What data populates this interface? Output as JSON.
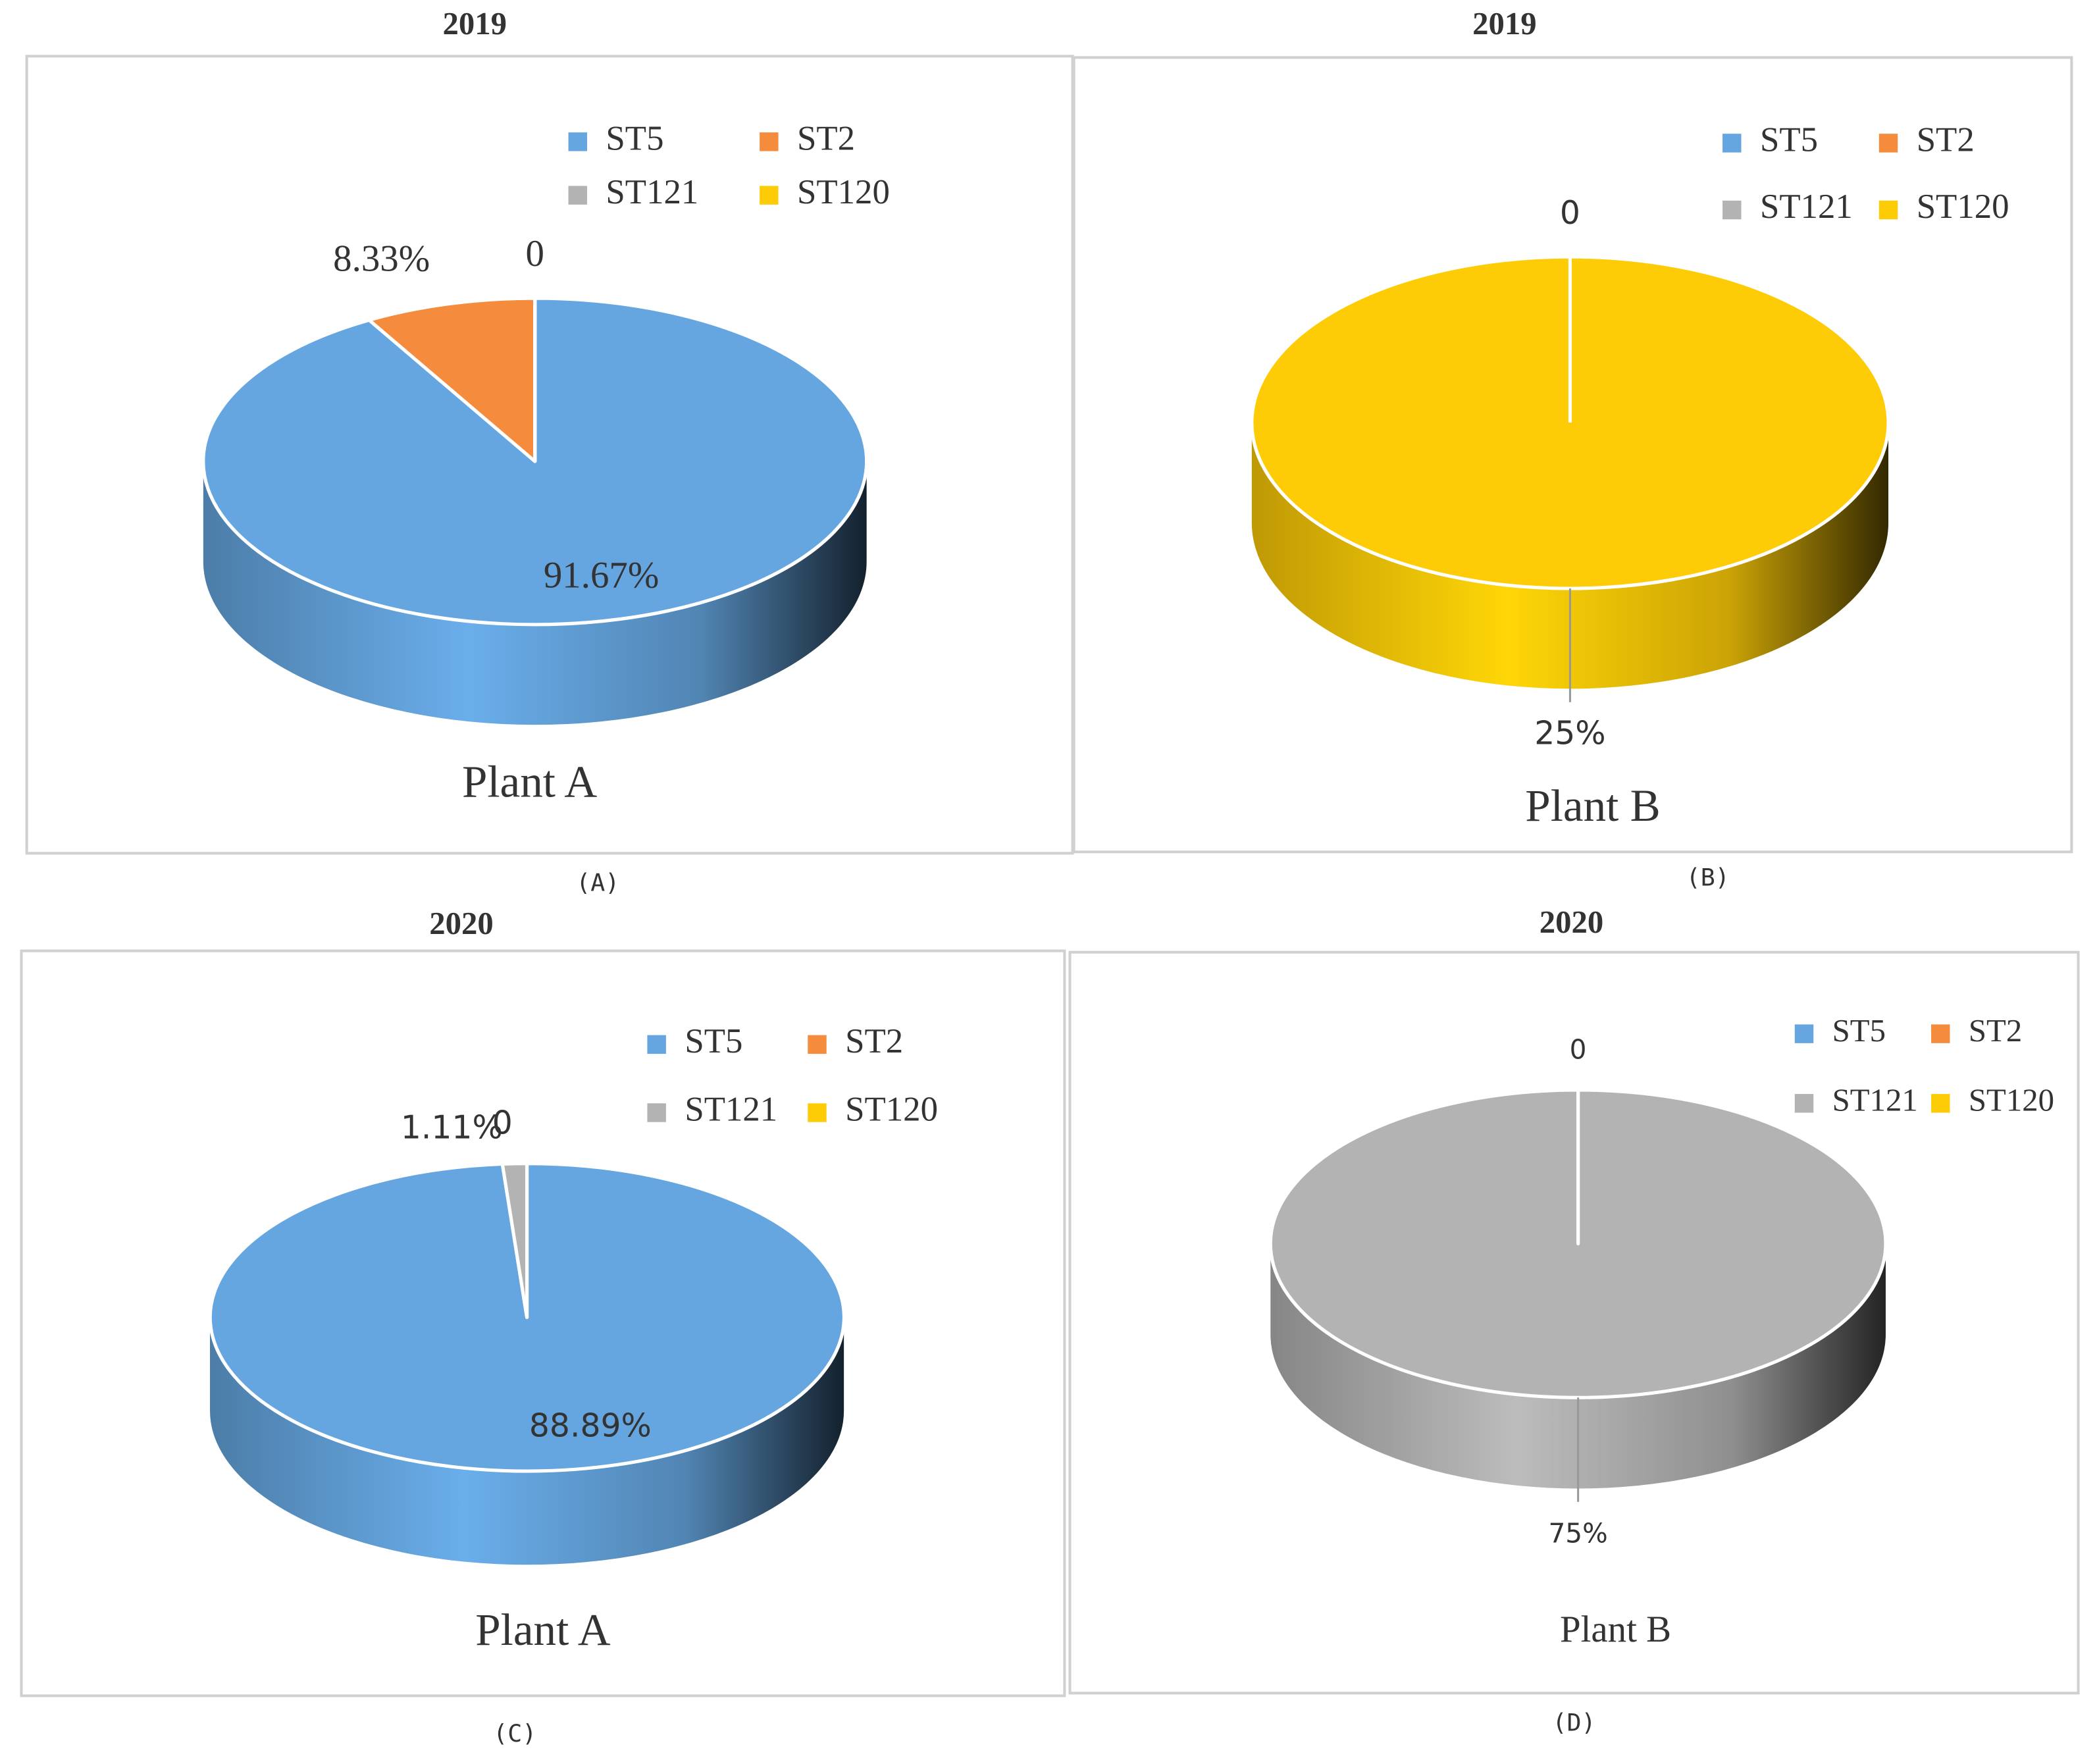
{
  "chart_data": [
    {
      "type": "pie",
      "title": "2019",
      "caption": "Plant A",
      "panel_label": "(A)",
      "categories": [
        "ST5",
        "ST2",
        "ST121",
        "ST120"
      ],
      "colors": [
        "#65a6e0",
        "#f58b3c",
        "#b3b3b3",
        "#fecc07"
      ],
      "values": [
        91.67,
        8.33,
        0,
        0
      ],
      "value_labels": [
        "91.67%",
        "8.33%",
        "0",
        null
      ]
    },
    {
      "type": "pie",
      "title": "2019",
      "caption": "Plant B",
      "panel_label": "(B)",
      "categories": [
        "ST5",
        "ST2",
        "ST121",
        "ST120"
      ],
      "colors": [
        "#65a6e0",
        "#f58b3c",
        "#b3b3b3",
        "#fecc07"
      ],
      "values": [
        0,
        0,
        0,
        25
      ],
      "value_labels": [
        "0",
        null,
        null,
        "25%"
      ]
    },
    {
      "type": "pie",
      "title": "2020",
      "caption": "Plant A",
      "panel_label": "(C)",
      "categories": [
        "ST5",
        "ST2",
        "ST121",
        "ST120"
      ],
      "colors": [
        "#65a6e0",
        "#f58b3c",
        "#b3b3b3",
        "#fecc07"
      ],
      "values": [
        88.89,
        0,
        1.11,
        0
      ],
      "value_labels": [
        "88.89%",
        "0",
        "1.11%",
        null
      ]
    },
    {
      "type": "pie",
      "title": "2020",
      "caption": "Plant B",
      "panel_label": "(D)",
      "categories": [
        "ST5",
        "ST2",
        "ST121",
        "ST120"
      ],
      "colors": [
        "#65a6e0",
        "#f58b3c",
        "#b3b3b3",
        "#fecc07"
      ],
      "values": [
        0,
        0,
        75,
        0
      ],
      "value_labels": [
        "0",
        null,
        "75%",
        null
      ]
    }
  ]
}
